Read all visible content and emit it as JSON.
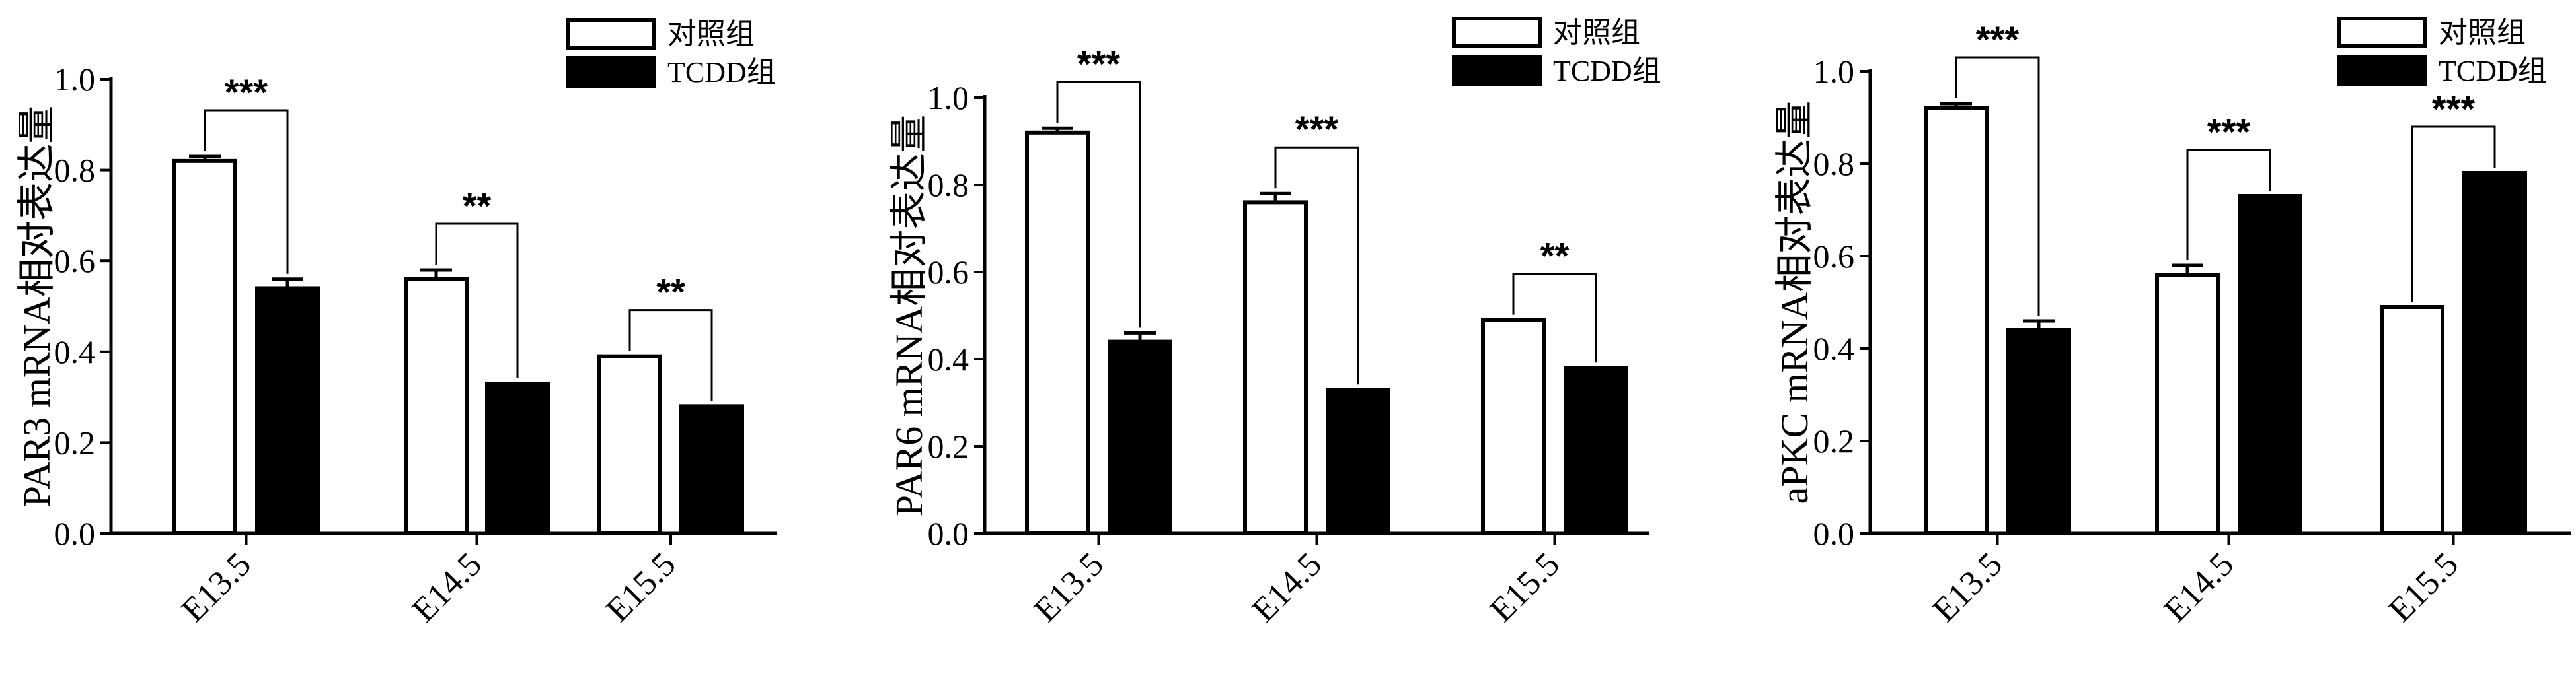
{
  "legend": {
    "items": [
      {
        "label": "对照组",
        "fill": "#ffffff"
      },
      {
        "label": "TCDD组",
        "fill": "#000000"
      }
    ]
  },
  "chart_data": [
    {
      "type": "bar",
      "ylabel": "PAR3 mRNA相对表达量",
      "ylim": [
        0,
        1.0
      ],
      "yticks": [
        "0.0",
        "0.2",
        "0.4",
        "0.6",
        "0.8",
        "1.0"
      ],
      "categories": [
        "E13.5",
        "E14.5",
        "E15.5"
      ],
      "series": [
        {
          "name": "对照组",
          "values": [
            0.82,
            0.56,
            0.39
          ],
          "errors": [
            0.01,
            0.02,
            0.0
          ]
        },
        {
          "name": "TCDD组",
          "values": [
            0.54,
            0.33,
            0.28
          ],
          "errors": [
            0.02,
            0.0,
            0.0
          ]
        }
      ],
      "significance": [
        "***",
        "**",
        "**"
      ]
    },
    {
      "type": "bar",
      "ylabel": "PAR6 mRNA相对表达量",
      "ylim": [
        0,
        1.0
      ],
      "yticks": [
        "0.0",
        "0.2",
        "0.4",
        "0.6",
        "0.8",
        "1.0"
      ],
      "categories": [
        "E13.5",
        "E14.5",
        "E15.5"
      ],
      "series": [
        {
          "name": "对照组",
          "values": [
            0.92,
            0.76,
            0.49
          ],
          "errors": [
            0.01,
            0.02,
            0.0
          ]
        },
        {
          "name": "TCDD组",
          "values": [
            0.44,
            0.33,
            0.38
          ],
          "errors": [
            0.02,
            0.0,
            0.0
          ]
        }
      ],
      "significance": [
        "***",
        "***",
        "**"
      ]
    },
    {
      "type": "bar",
      "ylabel": "aPKC mRNA相对表达量",
      "ylim": [
        0,
        1.0
      ],
      "yticks": [
        "0.0",
        "0.2",
        "0.4",
        "0.6",
        "0.8",
        "1.0"
      ],
      "categories": [
        "E13.5",
        "E14.5",
        "E15.5"
      ],
      "series": [
        {
          "name": "对照组",
          "values": [
            0.92,
            0.56,
            0.49
          ],
          "errors": [
            0.01,
            0.02,
            0.0
          ]
        },
        {
          "name": "TCDD组",
          "values": [
            0.44,
            0.73,
            0.78
          ],
          "errors": [
            0.02,
            0.0,
            0.0
          ]
        }
      ],
      "significance": [
        "***",
        "***",
        "***"
      ]
    }
  ]
}
